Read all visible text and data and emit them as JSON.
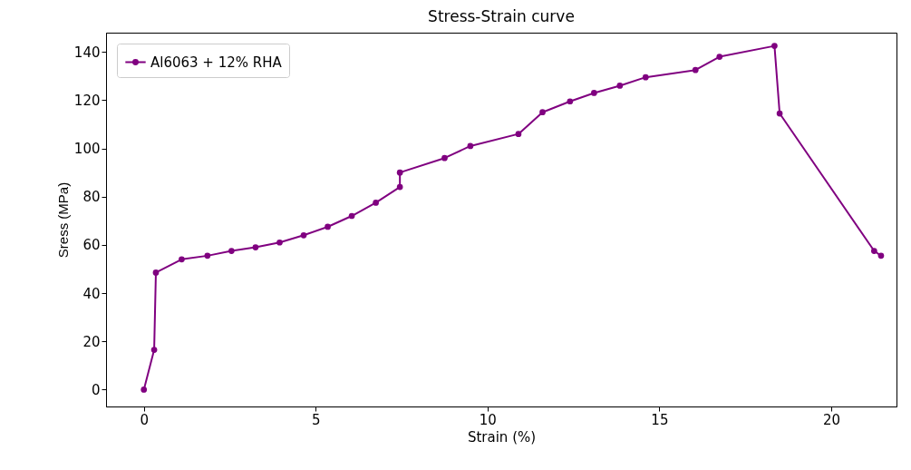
{
  "chart_data": {
    "type": "line",
    "title": "Stress-Strain curve",
    "xlabel": "Strain (%)",
    "ylabel": "Sress (MPa)",
    "xlim": [
      -1.1,
      21.9
    ],
    "xticks": [
      0,
      5,
      10,
      15,
      20
    ],
    "ylim": [
      -7,
      148
    ],
    "yticks": [
      0,
      20,
      40,
      60,
      80,
      100,
      120,
      140
    ],
    "grid": false,
    "legend": "top left",
    "marker": "circle",
    "line_style": "solid",
    "series": [
      {
        "name": "Al6063 + 12% RHA",
        "color": "#800080",
        "x": [
          0,
          0.3,
          0.35,
          1.1,
          1.85,
          2.55,
          3.25,
          3.95,
          4.65,
          5.35,
          6.05,
          6.75,
          7.45,
          7.45,
          8.75,
          9.5,
          10.9,
          11.6,
          12.4,
          13.1,
          13.85,
          14.6,
          16.05,
          16.75,
          18.35,
          18.5,
          21.25,
          21.45
        ],
        "values": [
          0,
          16.5,
          48.5,
          54,
          55.5,
          57.5,
          59,
          61,
          64,
          67.5,
          72,
          77.5,
          84,
          90,
          96,
          101,
          106,
          115,
          119.5,
          123,
          126,
          129.5,
          132.5,
          138,
          142.5,
          114.5,
          57.5,
          55.5
        ]
      }
    ]
  }
}
